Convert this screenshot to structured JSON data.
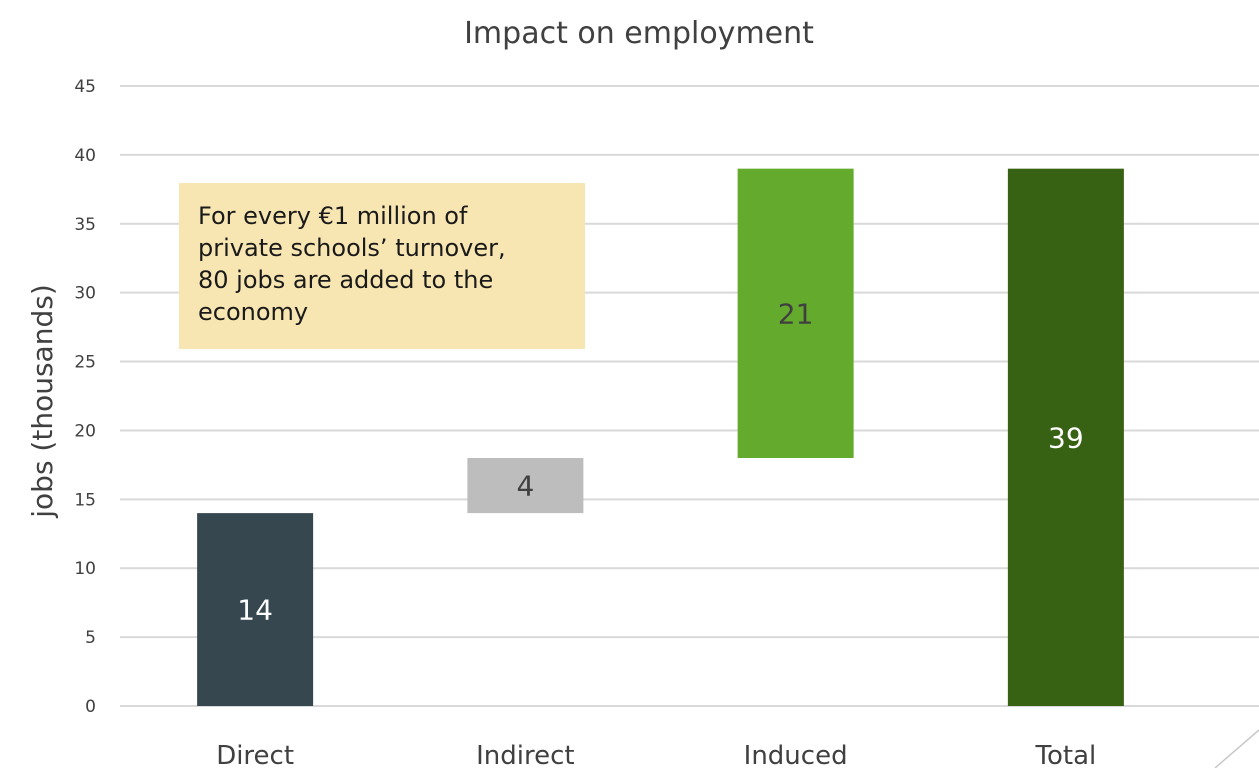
{
  "chart_data": {
    "type": "bar",
    "subtype": "waterfall",
    "title": "Impact on employment",
    "xlabel": "",
    "ylabel": "jobs (thousands)",
    "ylim": [
      0,
      45
    ],
    "yticks": [
      0,
      5,
      10,
      15,
      20,
      25,
      30,
      35,
      40,
      45
    ],
    "grid": true,
    "categories": [
      "Direct",
      "Indirect",
      "Induced",
      "Total"
    ],
    "bars": [
      {
        "category": "Direct",
        "base": 0,
        "value": 14,
        "label": "14",
        "color": "#37474f",
        "label_color": "#ffffff"
      },
      {
        "category": "Indirect",
        "base": 14,
        "value": 4,
        "label": "4",
        "color": "#bdbdbd",
        "label_color": "#404040"
      },
      {
        "category": "Induced",
        "base": 18,
        "value": 21,
        "label": "21",
        "color": "#63aa2d",
        "label_color": "#404040"
      },
      {
        "category": "Total",
        "base": 0,
        "value": 39,
        "label": "39",
        "color": "#376113",
        "label_color": "#ffffff"
      }
    ],
    "annotation": {
      "lines": [
        "For every €1 million of",
        "private schools’ turnover,",
        "80 jobs are added to the",
        "economy"
      ],
      "background": "#f8e6b2"
    }
  }
}
